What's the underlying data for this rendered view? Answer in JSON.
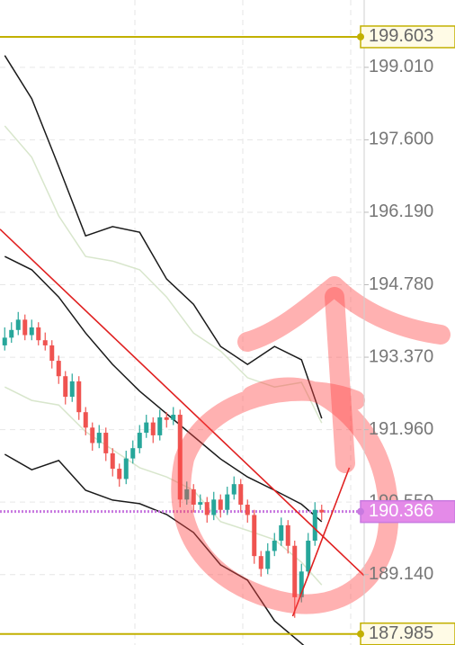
{
  "chart_data": {
    "type": "candlestick",
    "xlim": [
      -0.7,
      53.3
    ],
    "ylim": [
      187.77,
      200.32
    ],
    "yticks": [
      {
        "value": 199.01,
        "label": "199.010"
      },
      {
        "value": 197.6,
        "label": "197.600"
      },
      {
        "value": 196.19,
        "label": "196.190"
      },
      {
        "value": 194.78,
        "label": "194.780"
      },
      {
        "value": 193.37,
        "label": "193.370"
      },
      {
        "value": 191.96,
        "label": "191.960"
      },
      {
        "value": 190.55,
        "label": "190.550"
      },
      {
        "value": 189.14,
        "label": "189.140"
      }
    ],
    "grid": true,
    "up_color": "#26a69a",
    "down_color": "#ef5350",
    "candles": [
      [
        193.6,
        193.95,
        193.5,
        193.75
      ],
      [
        193.75,
        194.05,
        193.65,
        193.9
      ],
      [
        193.9,
        194.25,
        193.8,
        194.1
      ],
      [
        194.1,
        194.2,
        193.7,
        193.8
      ],
      [
        193.8,
        194.1,
        193.7,
        193.95
      ],
      [
        193.95,
        194.05,
        193.6,
        193.7
      ],
      [
        193.7,
        193.85,
        193.5,
        193.6
      ],
      [
        193.6,
        193.7,
        193.15,
        193.3
      ],
      [
        193.3,
        193.4,
        192.85,
        193.0
      ],
      [
        193.0,
        193.1,
        192.45,
        192.6
      ],
      [
        192.6,
        193.05,
        192.5,
        192.9
      ],
      [
        192.9,
        193.0,
        192.15,
        192.3
      ],
      [
        192.3,
        192.4,
        191.85,
        192.0
      ],
      [
        192.0,
        192.1,
        191.55,
        191.7
      ],
      [
        191.7,
        192.05,
        191.6,
        191.9
      ],
      [
        191.9,
        192.0,
        191.35,
        191.5
      ],
      [
        191.5,
        191.6,
        191.05,
        191.2
      ],
      [
        191.2,
        191.3,
        190.85,
        191.0
      ],
      [
        191.0,
        191.55,
        190.9,
        191.4
      ],
      [
        191.4,
        191.75,
        191.3,
        191.6
      ],
      [
        191.6,
        192.05,
        191.5,
        191.9
      ],
      [
        191.9,
        192.25,
        191.8,
        192.1
      ],
      [
        192.1,
        192.2,
        191.7,
        191.85
      ],
      [
        191.85,
        192.35,
        191.75,
        192.2
      ],
      [
        192.2,
        192.3,
        192.0,
        192.15
      ],
      [
        192.15,
        192.4,
        192.05,
        192.25
      ],
      [
        192.25,
        192.35,
        190.45,
        190.6
      ],
      [
        190.6,
        190.95,
        190.5,
        190.8
      ],
      [
        190.8,
        190.9,
        190.35,
        190.5
      ],
      [
        190.5,
        190.7,
        190.4,
        190.55
      ],
      [
        190.55,
        190.65,
        190.15,
        190.3
      ],
      [
        190.3,
        190.75,
        190.2,
        190.6
      ],
      [
        190.6,
        190.7,
        190.25,
        190.4
      ],
      [
        190.4,
        190.85,
        190.3,
        190.7
      ],
      [
        190.7,
        191.05,
        190.6,
        190.9
      ],
      [
        190.9,
        191.0,
        190.35,
        190.5
      ],
      [
        190.5,
        190.6,
        190.15,
        190.3
      ],
      [
        190.3,
        190.4,
        189.35,
        189.5
      ],
      [
        189.5,
        189.6,
        189.1,
        189.25
      ],
      [
        189.25,
        189.75,
        189.15,
        189.6
      ],
      [
        189.6,
        189.95,
        189.5,
        189.8
      ],
      [
        189.8,
        190.25,
        189.7,
        190.1
      ],
      [
        190.1,
        190.2,
        189.55,
        189.7
      ],
      [
        189.7,
        189.8,
        188.3,
        188.7
      ],
      [
        188.7,
        189.35,
        188.6,
        189.2
      ],
      [
        189.2,
        189.95,
        189.1,
        189.8
      ],
      [
        189.8,
        190.55,
        189.7,
        190.4
      ],
      [
        190.4,
        190.5,
        190.2,
        190.35
      ]
    ],
    "bands": {
      "x": [
        0,
        4,
        8,
        12,
        16,
        20,
        24,
        28,
        32,
        36,
        40,
        44,
        47
      ],
      "lines": [
        {
          "color": "#1a1a1a",
          "values": [
            199.24,
            198.4,
            197.08,
            195.73,
            195.91,
            195.8,
            194.89,
            194.4,
            193.58,
            193.23,
            193.58,
            193.32,
            192.18
          ]
        },
        {
          "color": "#1a1a1a",
          "values": [
            195.33,
            195.07,
            194.54,
            193.84,
            193.23,
            192.71,
            192.27,
            191.83,
            191.39,
            191.04,
            190.78,
            190.51,
            190.17
          ]
        },
        {
          "color": "#1a1a1a",
          "values": [
            191.48,
            191.18,
            191.36,
            190.78,
            190.59,
            190.52,
            190.31,
            189.96,
            189.33,
            189.03,
            188.24,
            187.8,
            187.45
          ]
        },
        {
          "color": "#d8e6cc",
          "values": [
            197.87,
            197.26,
            196.12,
            195.33,
            195.24,
            195.07,
            194.54,
            193.84,
            193.49,
            192.97,
            192.79,
            192.88,
            192.09
          ]
        },
        {
          "color": "#d8e6cc",
          "values": [
            192.79,
            192.53,
            192.44,
            191.92,
            191.57,
            191.22,
            191.04,
            190.78,
            190.17,
            190.0,
            189.82,
            189.38,
            188.94
          ]
        }
      ]
    },
    "trend_lines": [
      {
        "color": "#e02020",
        "x": [
          -0.7,
          53.3
        ],
        "y": [
          195.86,
          189.12
        ]
      },
      {
        "color": "#e02020",
        "x": [
          42.7,
          51.1
        ],
        "y": [
          188.33,
          191.22
        ]
      }
    ],
    "price_lines": [
      {
        "value": 199.603,
        "color": "#c2b000",
        "style": "solid",
        "label_fill": "#fffbe6",
        "label_text": "#666"
      },
      {
        "value": 190.366,
        "color": "#c879e0",
        "style": "dotted",
        "label_fill": "#e48ae8",
        "label_text": "#ffffff"
      },
      {
        "value": 187.985,
        "color": "#c2b000",
        "style": "solid",
        "label_fill": "#fffbe6",
        "label_text": "#666"
      }
    ]
  }
}
